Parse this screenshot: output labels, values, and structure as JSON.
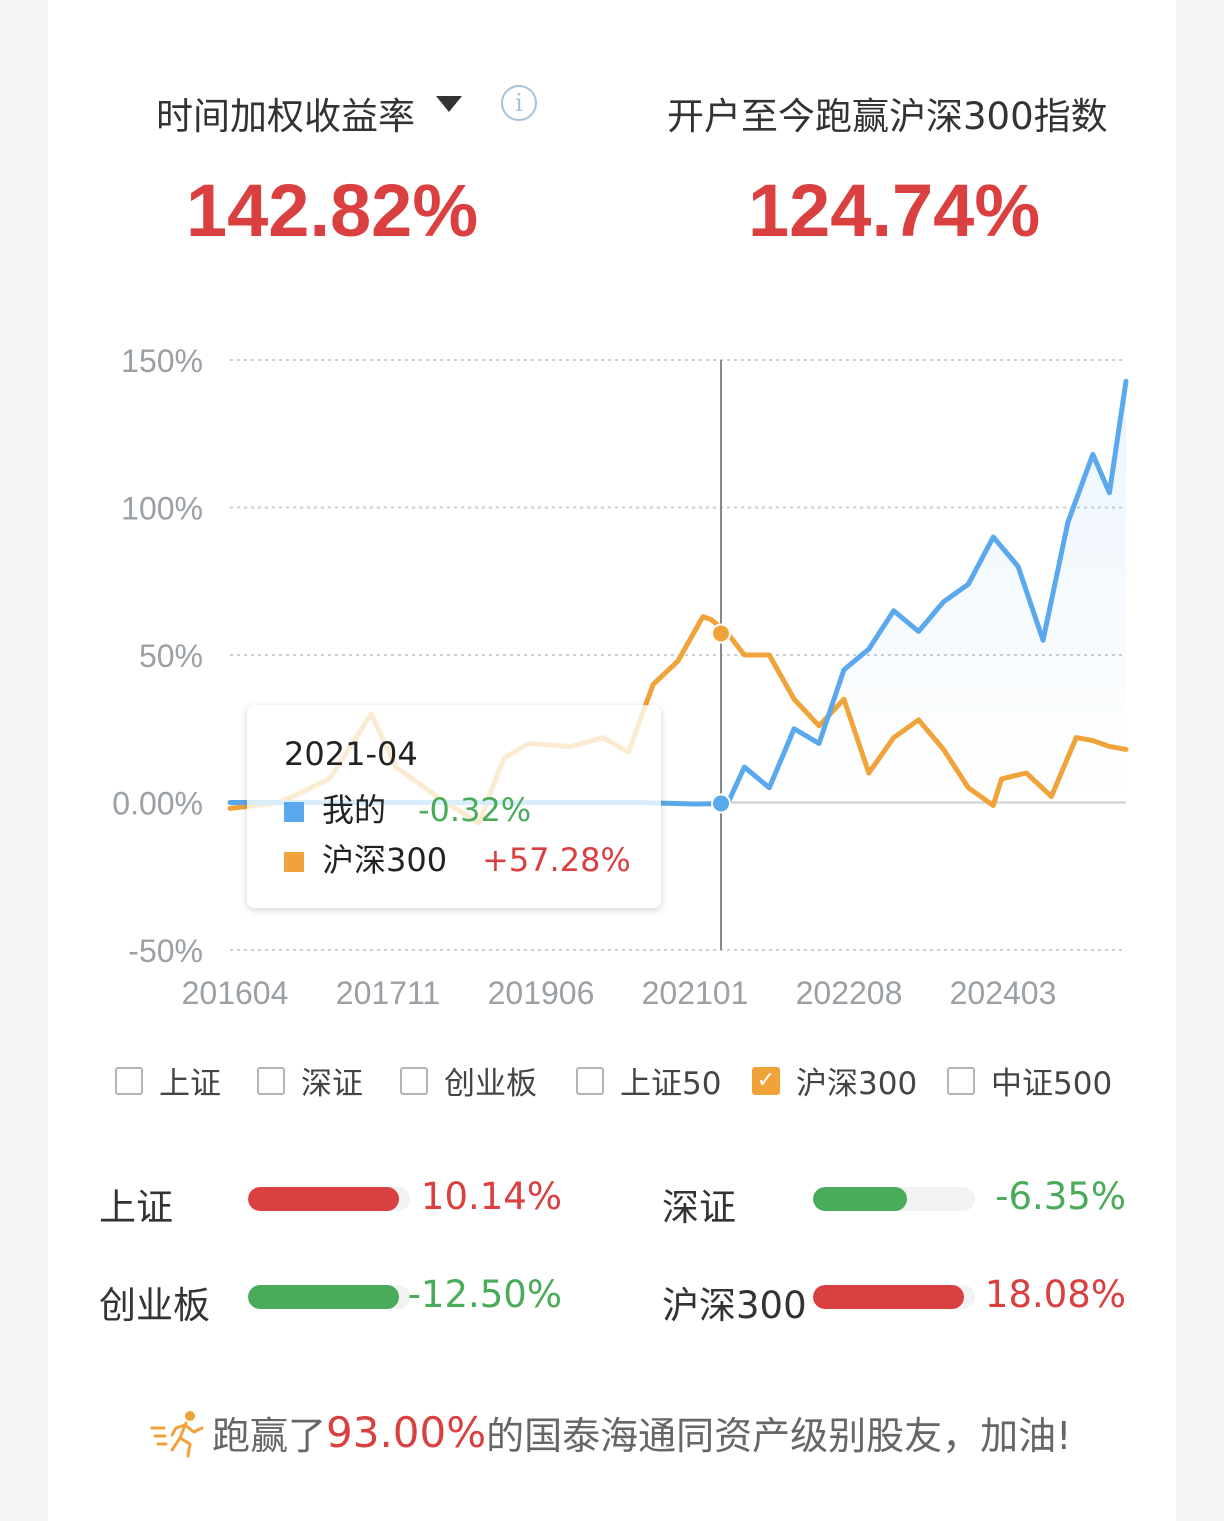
{
  "header": {
    "left_label": "时间加权收益率",
    "left_value": "142.82%",
    "right_label": "开户至今跑赢沪深300指数",
    "right_value": "124.74%"
  },
  "colors": {
    "accent_red": "#d9403f",
    "green": "#4aab5a",
    "series_mine": "#5aa9ec",
    "series_index": "#f0a33a"
  },
  "chart_data": {
    "type": "line",
    "y_ticks": [
      "150%",
      "100%",
      "50%",
      "0.00%",
      "-50%"
    ],
    "ylim": [
      -50,
      150
    ],
    "x_ticks": [
      "201604",
      "201711",
      "201906",
      "202101",
      "202208",
      "202403"
    ],
    "grid": true,
    "highlight_x": "2021-04",
    "series": [
      {
        "name": "我的",
        "color": "#5aa9ec",
        "x": [
          "2016-04",
          "2016-06",
          "2017-01",
          "2017-09",
          "2018-05",
          "2019-01",
          "2019-09",
          "2020-05",
          "2020-12",
          "2021-04",
          "2021-06",
          "2021-09",
          "2021-12",
          "2022-03",
          "2022-06",
          "2022-09",
          "2022-12",
          "2023-03",
          "2023-06",
          "2023-09",
          "2023-12",
          "2024-03",
          "2024-06",
          "2024-09",
          "2024-12",
          "2025-02",
          "2025-04"
        ],
        "values": [
          0,
          0,
          0,
          0,
          0,
          0,
          0,
          0,
          -0.5,
          -0.32,
          12,
          5,
          25,
          20,
          45,
          52,
          65,
          58,
          68,
          74,
          90,
          80,
          55,
          95,
          118,
          105,
          142.82
        ]
      },
      {
        "name": "沪深300",
        "color": "#f0a33a",
        "x": [
          "2016-04",
          "2016-10",
          "2017-04",
          "2017-09",
          "2017-12",
          "2018-06",
          "2018-10",
          "2019-01",
          "2019-04",
          "2019-09",
          "2020-01",
          "2020-04",
          "2020-07",
          "2020-10",
          "2021-01",
          "2021-02",
          "2021-04",
          "2021-06",
          "2021-09",
          "2021-12",
          "2022-03",
          "2022-06",
          "2022-09",
          "2022-12",
          "2023-03",
          "2023-06",
          "2023-09",
          "2023-12",
          "2024-01",
          "2024-04",
          "2024-07",
          "2024-10",
          "2024-12",
          "2025-02",
          "2025-04"
        ],
        "values": [
          -2,
          0,
          8,
          30,
          12,
          0,
          -7,
          15,
          20,
          19,
          22,
          17,
          40,
          48,
          63,
          62,
          57.28,
          50,
          50,
          35,
          26,
          35,
          10,
          22,
          28,
          18,
          5,
          -1,
          8,
          10,
          2,
          22,
          21,
          19,
          18
        ]
      }
    ]
  },
  "tooltip": {
    "date": "2021-04",
    "rows": [
      {
        "name": "我的",
        "value": "-0.32%"
      },
      {
        "name": "沪深300",
        "value": "+57.28%"
      }
    ]
  },
  "legend": [
    {
      "label": "上证",
      "checked": false
    },
    {
      "label": "深证",
      "checked": false
    },
    {
      "label": "创业板",
      "checked": false
    },
    {
      "label": "上证50",
      "checked": false
    },
    {
      "label": "沪深300",
      "checked": true
    },
    {
      "label": "中证500",
      "checked": false
    }
  ],
  "comparisons": [
    {
      "label": "上证",
      "value": "10.14%",
      "fill": 0.93,
      "color": "#d9403f"
    },
    {
      "label": "深证",
      "value": "-6.35%",
      "fill": 0.58,
      "color": "#4aab5a"
    },
    {
      "label": "创业板",
      "value": "-12.50%",
      "fill": 0.93,
      "color": "#4aab5a"
    },
    {
      "label": "沪深300",
      "value": "18.08%",
      "fill": 0.93,
      "color": "#d9403f"
    }
  ],
  "footer": {
    "prefix": "跑赢了",
    "percent": "93.00%",
    "suffix": "的国泰海通同资产级别股友，加油!"
  }
}
